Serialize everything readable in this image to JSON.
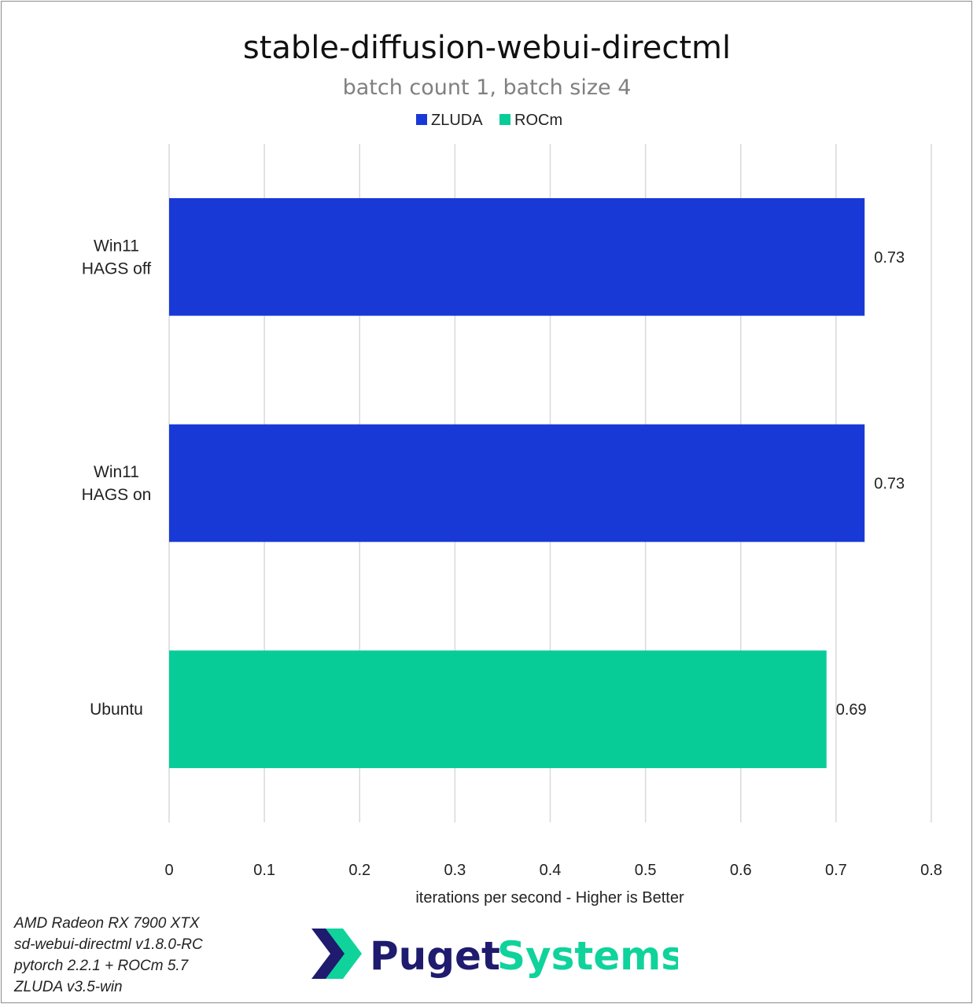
{
  "chart_data": {
    "type": "bar",
    "orientation": "horizontal",
    "title": "stable-diffusion-webui-directml",
    "subtitle": "batch count 1, batch size 4",
    "xlabel": "iterations per second - Higher is Better",
    "ylabel": "",
    "xlim": [
      0,
      0.8
    ],
    "xticks": [
      "0",
      "0.1",
      "0.2",
      "0.3",
      "0.4",
      "0.5",
      "0.6",
      "0.7",
      "0.8"
    ],
    "grid": true,
    "legend_position": "top",
    "series": [
      {
        "name": "ZLUDA",
        "color": "#1939d6"
      },
      {
        "name": "ROCm",
        "color": "#08cc98"
      }
    ],
    "bars": [
      {
        "label_lines": [
          "Win11",
          "HAGS off"
        ],
        "value": 0.73,
        "value_label": "0.73",
        "series": 0
      },
      {
        "label_lines": [
          "Win11",
          "HAGS on"
        ],
        "value": 0.73,
        "value_label": "0.73",
        "series": 0
      },
      {
        "label_lines": [
          "Ubuntu"
        ],
        "value": 0.69,
        "value_label": "0.69",
        "series": 1
      }
    ]
  },
  "footnotes": [
    "AMD Radeon RX 7900 XTX",
    "sd-webui-directml v1.8.0-RC",
    "pytorch 2.2.1 + ROCm 5.7",
    "ZLUDA v3.5-win"
  ],
  "logo": {
    "word1": "Puget",
    "word2": "Systems",
    "color_navy": "#1f1b6e",
    "color_green": "#0fd39b"
  }
}
